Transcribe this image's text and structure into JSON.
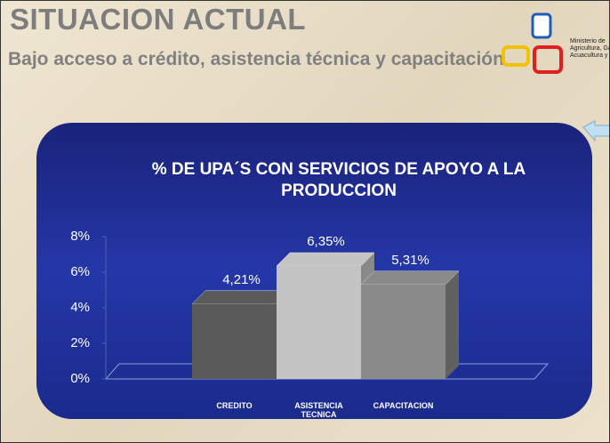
{
  "slide": {
    "title": "SITUACION ACTUAL",
    "subtitle": "Bajo acceso a crédito, asistencia técnica y capacitación",
    "logo_lines": [
      "Ministerio de",
      "Agricultura, Ganad",
      "Acuacultura y Pesc"
    ]
  },
  "chart_data": {
    "type": "bar",
    "title": "% DE UPA´S CON SERVICIOS DE APOYO A LA PRODUCCION",
    "categories": [
      "CREDITO",
      "ASISTENCIA TECNICA",
      "CAPACITACION"
    ],
    "values": [
      4.21,
      6.35,
      5.31
    ],
    "value_labels": [
      "4,21%",
      "6,35%",
      "5,31%"
    ],
    "colors": [
      "#5a5a5a",
      "#c4c4c4",
      "#8a8a8a"
    ],
    "ylim": [
      0,
      8
    ],
    "yticks": [
      {
        "value": 0,
        "label": "0%"
      },
      {
        "value": 2,
        "label": "2%"
      },
      {
        "value": 4,
        "label": "4%"
      },
      {
        "value": 6,
        "label": "6%"
      },
      {
        "value": 8,
        "label": "8%"
      }
    ],
    "grid": false
  }
}
